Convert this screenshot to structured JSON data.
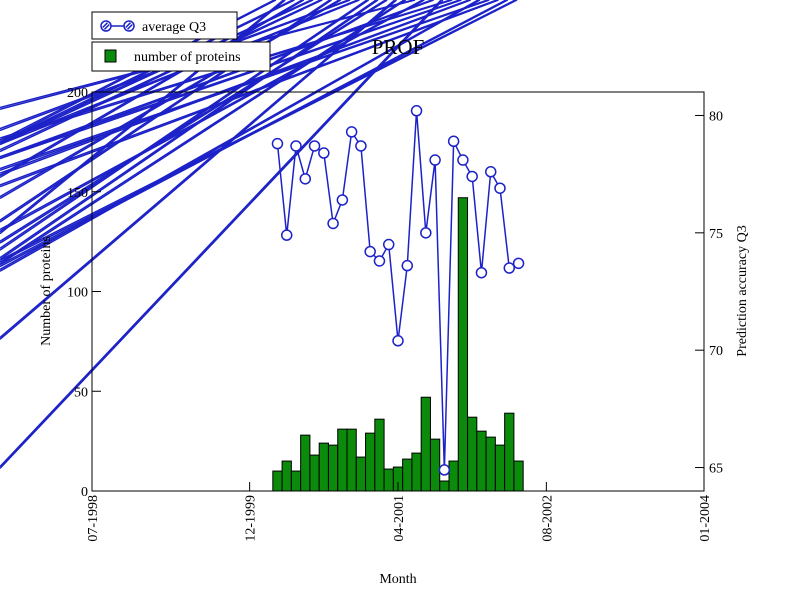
{
  "chart_data": {
    "type": "bar",
    "title": "PROF",
    "xlabel": "Month",
    "ylabel_left": "Number of proteins",
    "ylabel_right": "Prediction accuracy Q3",
    "x_ticks": [
      "07-1998",
      "12-1999",
      "04-2001",
      "08-2002",
      "01-2004"
    ],
    "x_range_months": [
      0,
      66
    ],
    "x_tick_months": [
      0,
      17,
      33,
      49,
      66
    ],
    "ylim_left": [
      0,
      200
    ],
    "y_ticks_left": [
      "0",
      "50",
      "100",
      "150",
      "200"
    ],
    "y_tick_values_left": [
      0,
      50,
      100,
      150,
      200
    ],
    "ylim_right": [
      64,
      81
    ],
    "y_ticks_right": [
      "65",
      "70",
      "75",
      "80"
    ],
    "y_tick_values_right": [
      65,
      70,
      75,
      80
    ],
    "legend": [
      "average Q3",
      "number of proteins"
    ],
    "legend_position": "top-left",
    "grid": false,
    "series": [
      {
        "name": "number of proteins",
        "type": "bar",
        "color": "#0b8a0b",
        "axis": "left",
        "x": [
          20,
          21,
          22,
          23,
          24,
          25,
          26,
          27,
          28,
          29,
          30,
          31,
          32,
          33,
          34,
          35,
          36,
          37,
          38,
          39,
          40,
          41,
          42,
          43,
          44,
          45,
          46,
          47,
          48
        ],
        "values": [
          10,
          15,
          10,
          28,
          18,
          24,
          23,
          31,
          31,
          17,
          29,
          36,
          11,
          12,
          16,
          19,
          47,
          26,
          5,
          15,
          147,
          37,
          30,
          27,
          23,
          39,
          15,
          0,
          0
        ]
      },
      {
        "name": "average Q3",
        "type": "line",
        "color": "#1c22c8",
        "axis": "right",
        "x": [
          20,
          21,
          22,
          23,
          24,
          25,
          26,
          27,
          28,
          29,
          30,
          31,
          32,
          33,
          34,
          35,
          36,
          37,
          38,
          39,
          40,
          41,
          42,
          43,
          44,
          45,
          46
        ],
        "values": [
          78.8,
          74.9,
          78.7,
          77.3,
          78.7,
          78.4,
          75.4,
          76.4,
          79.3,
          78.7,
          74.2,
          73.8,
          74.5,
          70.4,
          73.6,
          80.2,
          75.0,
          78.1,
          64.9,
          78.9,
          78.1,
          77.4,
          73.3,
          77.6,
          76.9,
          73.5,
          73.7
        ]
      }
    ]
  }
}
